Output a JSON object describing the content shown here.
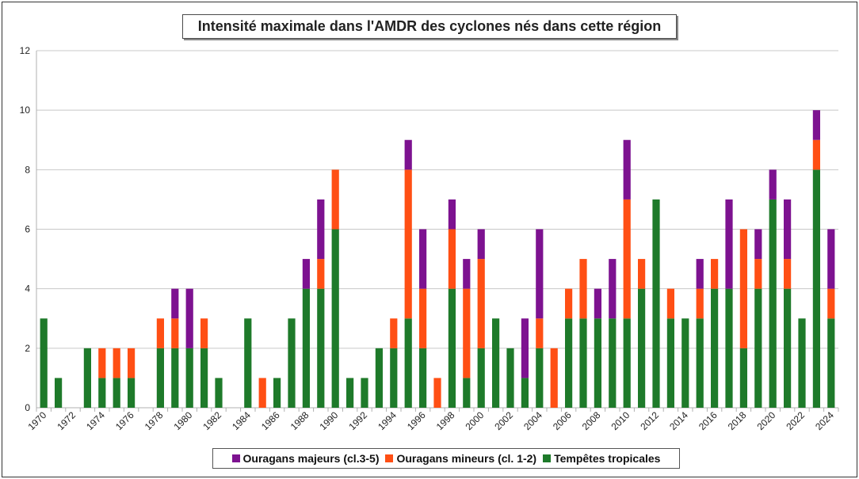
{
  "chart_data": {
    "type": "bar",
    "stacked": true,
    "title": "Intensité maximale dans l'AMDR des cyclones nés dans cette région",
    "xlabel": "",
    "ylabel": "",
    "ylim": [
      0,
      12
    ],
    "yticks": [
      0,
      2,
      4,
      6,
      8,
      10,
      12
    ],
    "grid": true,
    "legend_position": "bottom",
    "categories": [
      1970,
      1971,
      1972,
      1973,
      1974,
      1975,
      1976,
      1977,
      1978,
      1979,
      1980,
      1981,
      1982,
      1983,
      1984,
      1985,
      1986,
      1987,
      1988,
      1989,
      1990,
      1991,
      1992,
      1993,
      1994,
      1995,
      1996,
      1997,
      1998,
      1999,
      2000,
      2001,
      2002,
      2003,
      2004,
      2005,
      2006,
      2007,
      2008,
      2009,
      2010,
      2011,
      2012,
      2013,
      2014,
      2015,
      2016,
      2017,
      2018,
      2019,
      2020,
      2021,
      2022,
      2023,
      2024
    ],
    "xtick_labels": [
      "1970",
      "1972",
      "1974",
      "1976",
      "1978",
      "1980",
      "1982",
      "1984",
      "1986",
      "1988",
      "1990",
      "1992",
      "1994",
      "1996",
      "1998",
      "2000",
      "2002",
      "2004",
      "2006",
      "2008",
      "2010",
      "2012",
      "2014",
      "2016",
      "2018",
      "2020",
      "2022",
      "2024"
    ],
    "series": [
      {
        "name": "Tempêtes tropicales",
        "color": "#1e7a2a",
        "values": [
          3,
          1,
          0,
          2,
          1,
          1,
          1,
          0,
          2,
          2,
          2,
          2,
          1,
          0,
          3,
          0,
          1,
          3,
          4,
          4,
          6,
          1,
          1,
          2,
          2,
          3,
          2,
          0,
          4,
          1,
          2,
          3,
          2,
          1,
          2,
          0,
          3,
          3,
          3,
          3,
          3,
          4,
          7,
          3,
          3,
          3,
          4,
          4,
          2,
          4,
          7,
          4,
          3,
          8,
          3
        ]
      },
      {
        "name": "Ouragans mineurs (cl. 1-2)",
        "color": "#ff4f14",
        "values": [
          0,
          0,
          0,
          0,
          1,
          1,
          1,
          0,
          1,
          1,
          0,
          1,
          0,
          0,
          0,
          1,
          0,
          0,
          0,
          1,
          2,
          0,
          0,
          0,
          1,
          5,
          2,
          1,
          2,
          3,
          3,
          0,
          0,
          0,
          1,
          2,
          1,
          2,
          0,
          0,
          4,
          1,
          0,
          1,
          0,
          1,
          1,
          0,
          4,
          1,
          0,
          1,
          0,
          1,
          1
        ]
      },
      {
        "name": "Ouragans majeurs (cl.3-5)",
        "color": "#7d1290",
        "values": [
          0,
          0,
          0,
          0,
          0,
          0,
          0,
          0,
          0,
          1,
          2,
          0,
          0,
          0,
          0,
          0,
          0,
          0,
          1,
          2,
          0,
          0,
          0,
          0,
          0,
          1,
          2,
          0,
          1,
          1,
          1,
          0,
          0,
          2,
          3,
          0,
          0,
          0,
          1,
          2,
          2,
          0,
          0,
          0,
          0,
          1,
          0,
          3,
          0,
          1,
          1,
          2,
          0,
          1,
          2
        ]
      }
    ],
    "legend_order": [
      "Ouragans majeurs (cl.3-5)",
      "Ouragans mineurs (cl. 1-2)",
      "Tempêtes tropicales"
    ]
  }
}
